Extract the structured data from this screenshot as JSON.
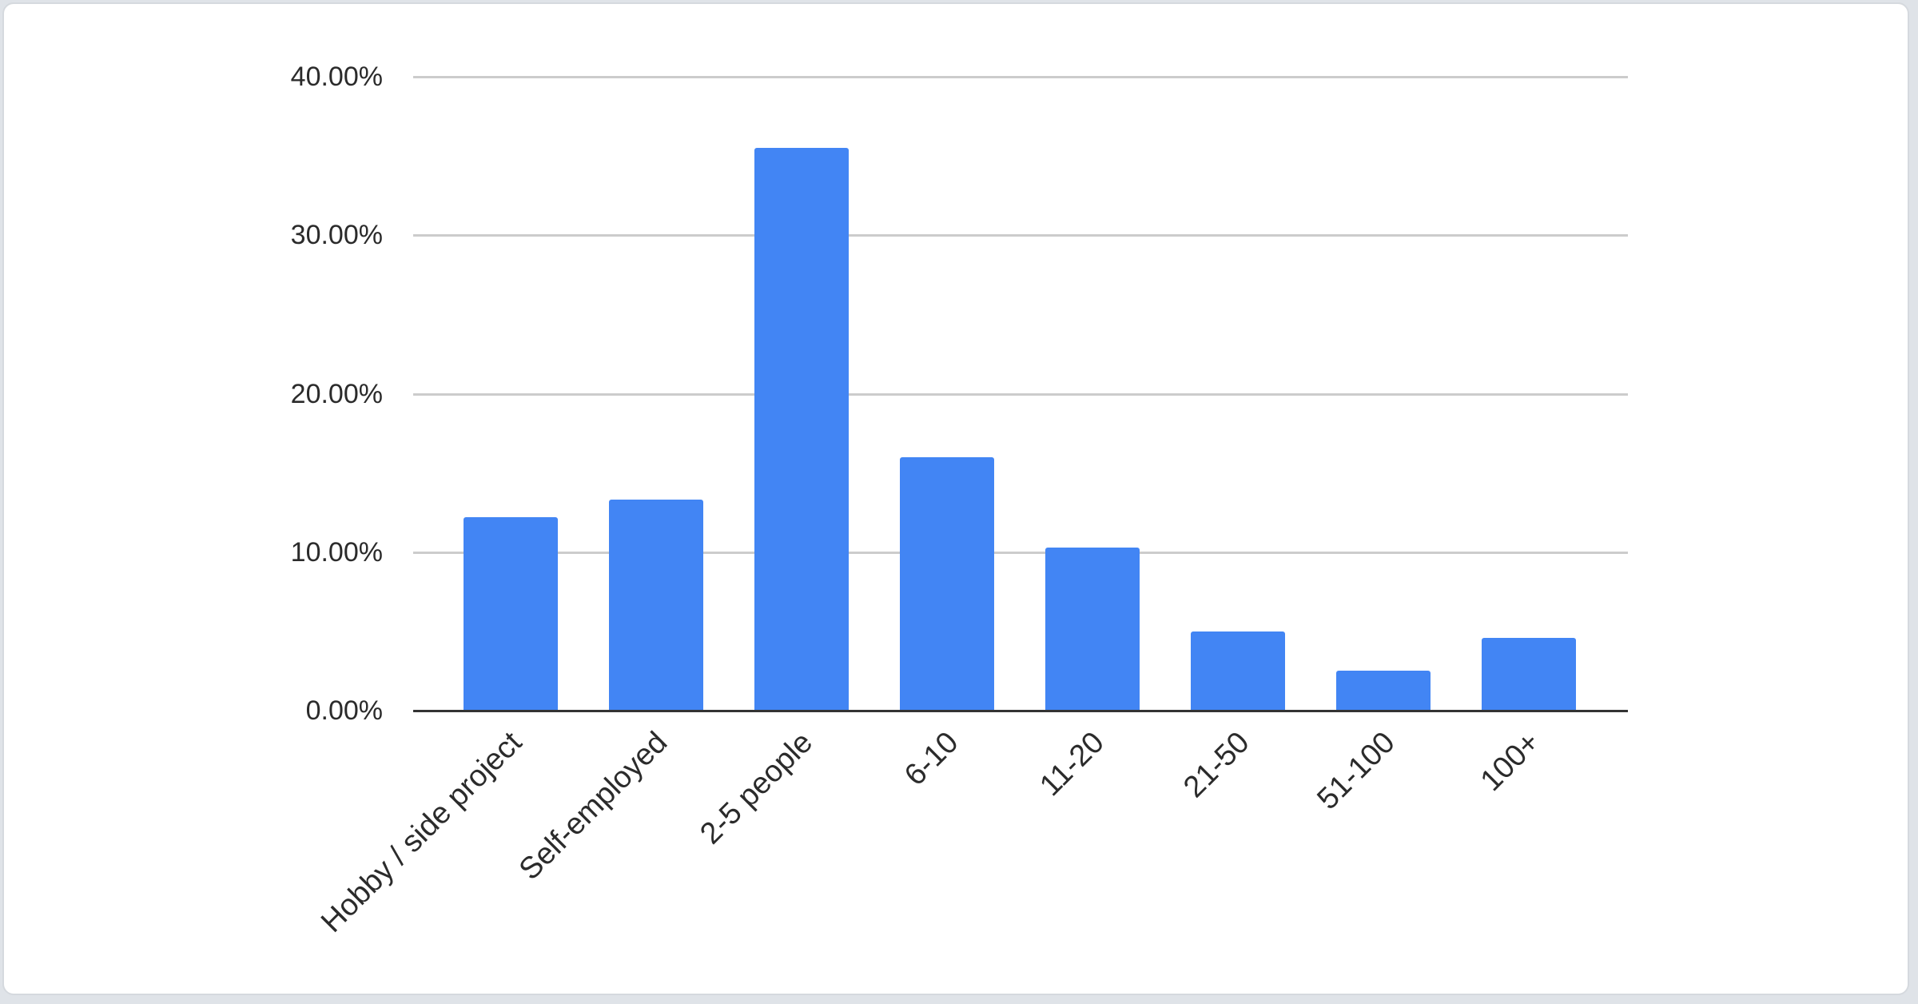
{
  "page": {
    "background_color": "#dfe3e8",
    "card_background_color": "#ffffff",
    "card_border_color": "#d5d9de"
  },
  "chart_data": {
    "type": "bar",
    "title": "",
    "xlabel": "",
    "ylabel": "",
    "categories": [
      "Hobby / side project",
      "Self-employed",
      "2-5 people",
      "6-10",
      "11-20",
      "21-50",
      "51-100",
      "100+"
    ],
    "values": [
      12.2,
      13.3,
      35.5,
      16.0,
      10.3,
      5.0,
      2.5,
      4.6
    ],
    "value_unit": "%",
    "ylim": [
      0,
      40
    ],
    "y_ticks": [
      {
        "value": 0,
        "label": "0.00%"
      },
      {
        "value": 10,
        "label": "10.00%"
      },
      {
        "value": 20,
        "label": "20.00%"
      },
      {
        "value": 30,
        "label": "30.00%"
      },
      {
        "value": 40,
        "label": "40.00%"
      }
    ],
    "grid": true,
    "legend_position": "none",
    "x_label_rotation_deg": -45,
    "bar_color": "#4285f4",
    "gridline_color": "#cccccc",
    "axis_line_color": "#333333",
    "label_color": "#2b2b2b"
  }
}
